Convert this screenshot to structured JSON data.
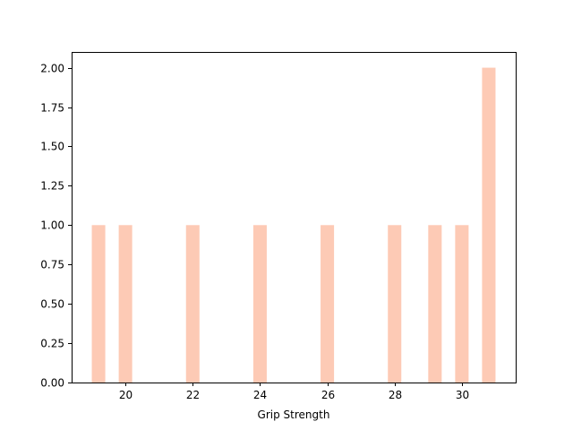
{
  "chart_data": {
    "type": "bar",
    "title": "",
    "xlabel": "Grip Strength",
    "ylabel": "",
    "bar_color": "#fdcab5",
    "xlim": [
      18.4,
      31.6
    ],
    "ylim": [
      0,
      2.1
    ],
    "bin_width": 0.4,
    "x": [
      19.2,
      20.0,
      22.0,
      24.0,
      26.0,
      28.0,
      29.2,
      30.0,
      30.8
    ],
    "values": [
      1,
      1,
      1,
      1,
      1,
      1,
      1,
      1,
      2
    ],
    "xticks": [
      20,
      22,
      24,
      26,
      28,
      30
    ],
    "xtick_labels": [
      "20",
      "22",
      "24",
      "26",
      "28",
      "30"
    ],
    "yticks": [
      0,
      0.25,
      0.5,
      0.75,
      1.0,
      1.25,
      1.5,
      1.75,
      2.0
    ],
    "ytick_labels": [
      "0.00",
      "0.25",
      "0.50",
      "0.75",
      "1.00",
      "1.25",
      "1.50",
      "1.75",
      "2.00"
    ],
    "grid": false,
    "legend": false
  }
}
